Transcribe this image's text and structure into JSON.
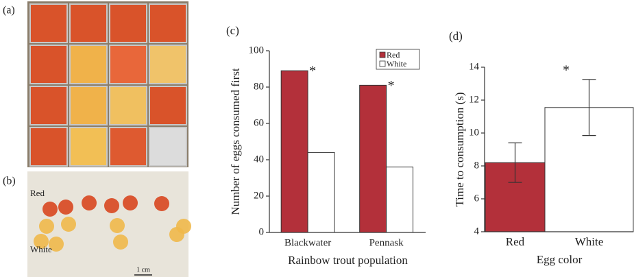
{
  "photos": {
    "a": {
      "label": "(a)"
    },
    "b": {
      "label": "(b)",
      "texts": [
        "Red",
        "White",
        "1 cm"
      ]
    }
  },
  "chart_data": [
    {
      "type": "bar",
      "panel_label": "(c)",
      "ylabel": "Number of eggs consumed first",
      "xlabel": "Rainbow trout population",
      "categories": [
        "Blackwater",
        "Pennask"
      ],
      "series": [
        {
          "name": "Red",
          "color": "#b3303a",
          "values": [
            89,
            81
          ]
        },
        {
          "name": "White",
          "color": "#ffffff",
          "values": [
            44,
            36
          ]
        }
      ],
      "ylim": [
        0,
        100
      ],
      "yticks": [
        0,
        20,
        40,
        60,
        80,
        100
      ],
      "legend": "upper right",
      "annotations": [
        "*",
        "*"
      ]
    },
    {
      "type": "bar",
      "panel_label": "(d)",
      "ylabel": "Time to consumption (s)",
      "xlabel": "Egg color",
      "categories": [
        "Red",
        "White"
      ],
      "values": [
        8.2,
        11.55
      ],
      "errors": [
        1.2,
        1.7
      ],
      "colors": [
        "#b3303a",
        "#ffffff"
      ],
      "ylim": [
        4,
        14
      ],
      "yticks": [
        4,
        6,
        8,
        10,
        12,
        14
      ],
      "annotations": [
        "*"
      ]
    }
  ]
}
